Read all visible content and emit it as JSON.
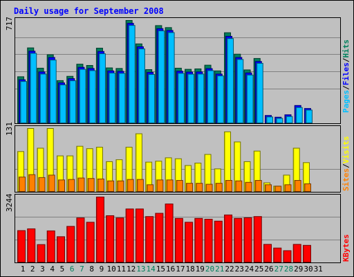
{
  "chart_data": {
    "title": "Daily usage for September 2008",
    "days": [
      "1",
      "2",
      "3",
      "4",
      "5",
      "6",
      "7",
      "8",
      "9",
      "10",
      "11",
      "12",
      "13",
      "14",
      "15",
      "16",
      "17",
      "18",
      "19",
      "20",
      "21",
      "22",
      "23",
      "24",
      "25",
      "26",
      "27",
      "28",
      "29",
      "30",
      "31"
    ],
    "weekend_days": [
      "6",
      "7",
      "13",
      "14",
      "20",
      "21",
      "27",
      "28"
    ],
    "panels": [
      {
        "type": "bar",
        "max_label": "717",
        "ylim": [
          0,
          717
        ],
        "side_labels": [
          "Pages",
          "Files",
          "Hits"
        ],
        "series": [
          {
            "name": "Hits",
            "color": "#00805c",
            "values": [
              323,
              525,
              383,
              477,
              296,
              326,
              411,
              402,
              523,
              385,
              381,
              717,
              553,
              373,
              681,
              667,
              383,
              375,
              378,
              404,
              364,
              631,
              481,
              371,
              451,
              0,
              0,
              0,
              0,
              0,
              0
            ]
          },
          {
            "name": "Files",
            "color": "#0000ff",
            "values": [
              302,
              502,
              357,
              458,
              280,
              310,
              389,
              381,
              500,
              364,
              361,
              697,
              533,
              354,
              660,
              647,
              362,
              356,
              357,
              380,
              342,
              606,
              458,
              350,
              430,
              52,
              40,
              57,
              122,
              101,
              0
            ]
          },
          {
            "name": "Pages",
            "color": "#00bfff",
            "values": [
              290,
              487,
              342,
              440,
              266,
              295,
              375,
              366,
              484,
              349,
              347,
              682,
              518,
              339,
              644,
              632,
              347,
              341,
              342,
              366,
              329,
              590,
              444,
              335,
              417,
              42,
              32,
              45,
              108,
              90,
              0
            ]
          }
        ]
      },
      {
        "type": "bar",
        "max_label": "131",
        "ylim": [
          0,
          131
        ],
        "side_labels": [
          "Sites",
          "Visits"
        ],
        "series": [
          {
            "name": "Visits",
            "color": "#ffff00",
            "values": [
              83,
              131,
              90,
              131,
              74,
              74,
              94,
              89,
              92,
              62,
              66,
              92,
              120,
              61,
              63,
              70,
              68,
              54,
              59,
              77,
              47,
              124,
              103,
              62,
              84,
              18,
              11,
              34,
              90,
              60,
              0
            ]
          },
          {
            "name": "Sites",
            "color": "#ff8000",
            "values": [
              30,
              35,
              29,
              34,
              24,
              25,
              28,
              27,
              26,
              22,
              22,
              25,
              25,
              14,
              24,
              24,
              23,
              17,
              17,
              15,
              17,
              23,
              22,
              19,
              23,
              14,
              11,
              14,
              23,
              16,
              0
            ]
          }
        ]
      },
      {
        "type": "bar",
        "max_label": "3244",
        "ylim": [
          0,
          3244
        ],
        "side_labels": [
          "KBytes"
        ],
        "series": [
          {
            "name": "KBytes",
            "color": "#ff0000",
            "values": [
              1570,
              1659,
              874,
              1557,
              1266,
              1781,
              2203,
              1987,
              3244,
              2314,
              2203,
              2649,
              2649,
              2271,
              2433,
              2899,
              2179,
              1987,
              2179,
              2138,
              2043,
              2351,
              2179,
              2209,
              2271,
              884,
              702,
              570,
              884,
              835,
              0
            ]
          }
        ]
      }
    ]
  }
}
